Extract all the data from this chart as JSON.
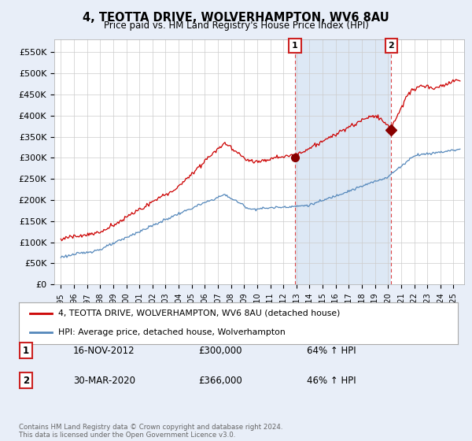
{
  "title": "4, TEOTTA DRIVE, WOLVERHAMPTON, WV6 8AU",
  "subtitle": "Price paid vs. HM Land Registry's House Price Index (HPI)",
  "legend_line1": "4, TEOTTA DRIVE, WOLVERHAMPTON, WV6 8AU (detached house)",
  "legend_line2": "HPI: Average price, detached house, Wolverhampton",
  "annotation1_label": "1",
  "annotation1_date": "16-NOV-2012",
  "annotation1_price": "£300,000",
  "annotation1_hpi": "64% ↑ HPI",
  "annotation2_label": "2",
  "annotation2_date": "30-MAR-2020",
  "annotation2_price": "£366,000",
  "annotation2_hpi": "46% ↑ HPI",
  "footer": "Contains HM Land Registry data © Crown copyright and database right 2024.\nThis data is licensed under the Open Government Licence v3.0.",
  "red_color": "#cc0000",
  "blue_color": "#5588bb",
  "bg_shade_color": "#dde8f5",
  "background_color": "#e8eef8",
  "plot_bg_color": "#ffffff",
  "vline_color": "#dd4444",
  "ylim": [
    0,
    580000
  ],
  "yticks": [
    0,
    50000,
    100000,
    150000,
    200000,
    250000,
    300000,
    350000,
    400000,
    450000,
    500000,
    550000
  ],
  "ytick_labels": [
    "£0",
    "£50K",
    "£100K",
    "£150K",
    "£200K",
    "£250K",
    "£300K",
    "£350K",
    "£400K",
    "£450K",
    "£500K",
    "£550K"
  ],
  "sale1_x": 2012.88,
  "sale1_y": 300000,
  "sale2_x": 2020.25,
  "sale2_y": 366000,
  "xmin": 1994.5,
  "xmax": 2025.8
}
